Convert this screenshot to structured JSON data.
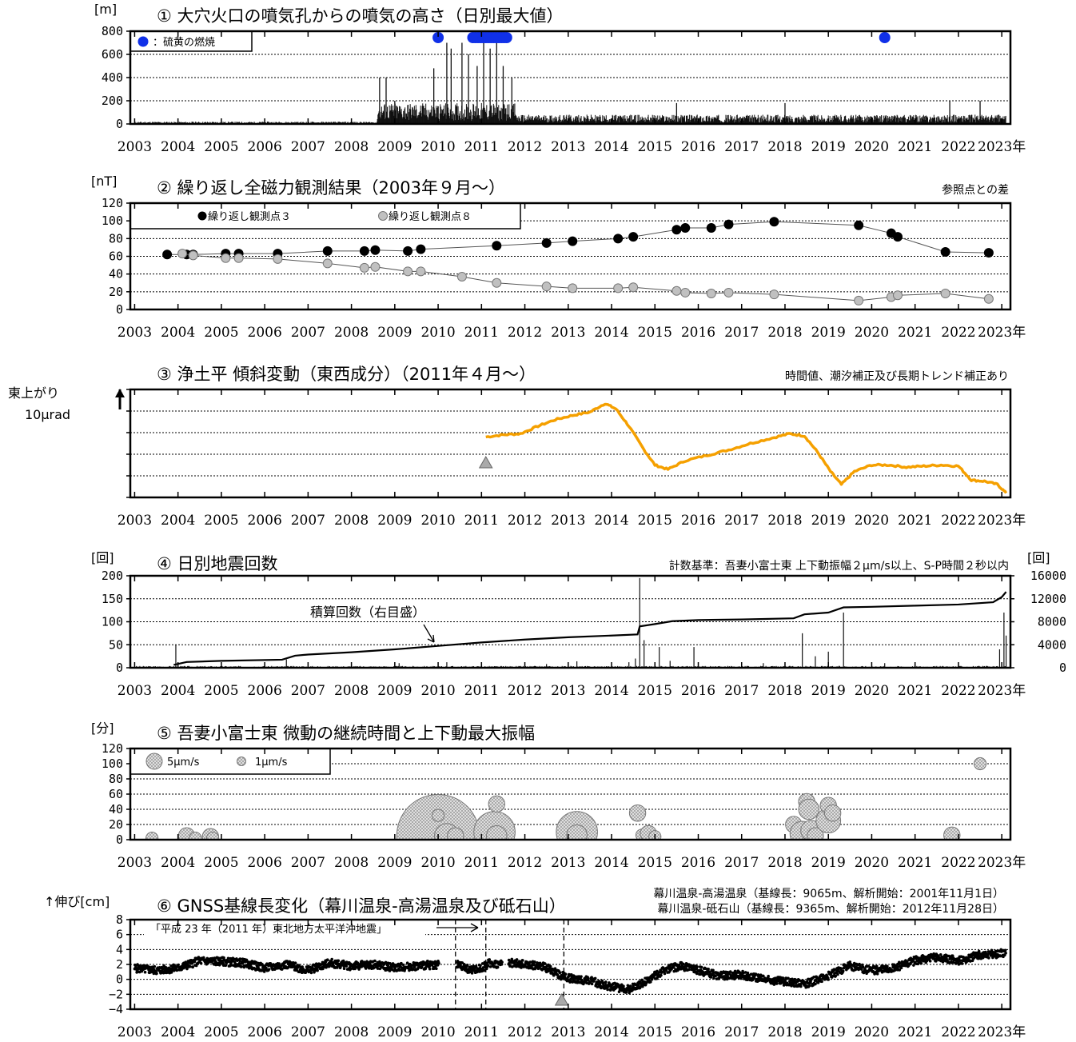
{
  "x_axis": {
    "years": [
      "2003",
      "2004",
      "2005",
      "2006",
      "2007",
      "2008",
      "2009",
      "2010",
      "2011",
      "2012",
      "2013",
      "2014",
      "2015",
      "2016",
      "2017",
      "2018",
      "2019",
      "2020",
      "2021",
      "2022",
      "2023"
    ],
    "year_suffix": "年",
    "range": [
      2002.9,
      2023.2
    ]
  },
  "chart_data": [
    {
      "id": "p1",
      "type": "bar",
      "title": "① 大穴火口の噴気孔からの噴気の高さ（日別最大値）",
      "unit_label": "[m]",
      "ylim": [
        0,
        800
      ],
      "yticks": [
        "800",
        "600",
        "400",
        "200",
        "0"
      ],
      "yticks_values": [
        800,
        600,
        400,
        200,
        0
      ],
      "legend": {
        "label": "：硫黄の燃焼",
        "color": "#1030e8"
      },
      "baseline_levels": [
        {
          "from": 2003.0,
          "to": 2008.6,
          "value": 20
        },
        {
          "from": 2008.6,
          "to": 2011.8,
          "value": 180
        },
        {
          "from": 2011.8,
          "to": 2023.1,
          "value": 80
        }
      ],
      "peaks": [
        {
          "x": 2008.65,
          "y": 400
        },
        {
          "x": 2008.8,
          "y": 400
        },
        {
          "x": 2009.0,
          "y": 200
        },
        {
          "x": 2009.9,
          "y": 480
        },
        {
          "x": 2010.2,
          "y": 700
        },
        {
          "x": 2010.3,
          "y": 650
        },
        {
          "x": 2010.55,
          "y": 700
        },
        {
          "x": 2010.7,
          "y": 600
        },
        {
          "x": 2010.9,
          "y": 500
        },
        {
          "x": 2011.05,
          "y": 700
        },
        {
          "x": 2011.2,
          "y": 650
        },
        {
          "x": 2011.35,
          "y": 700
        },
        {
          "x": 2011.5,
          "y": 500
        },
        {
          "x": 2011.7,
          "y": 400
        },
        {
          "x": 2015.5,
          "y": 180
        },
        {
          "x": 2018.0,
          "y": 180
        },
        {
          "x": 2021.8,
          "y": 200
        },
        {
          "x": 2022.5,
          "y": 200
        }
      ],
      "sulfur_burning": [
        {
          "from": 2010.0,
          "to": 2010.05
        },
        {
          "from": 2010.8,
          "to": 2011.6
        },
        {
          "from": 2020.3,
          "to": 2020.35
        }
      ]
    },
    {
      "id": "p2",
      "type": "scatter",
      "title": "② 繰り返し全磁力観測結果（2003年９月～）",
      "unit_label": "[nT]",
      "note": "参照点との差",
      "ylim": [
        0,
        120
      ],
      "yticks": [
        "120",
        "100",
        "80",
        "60",
        "40",
        "20",
        "0"
      ],
      "yticks_values": [
        120,
        100,
        80,
        60,
        40,
        20,
        0
      ],
      "series": [
        {
          "name": "繰り返し観測点３",
          "color": "#000000",
          "x": [
            2003.75,
            2004.2,
            2004.35,
            2005.1,
            2005.4,
            2006.3,
            2007.45,
            2008.3,
            2008.55,
            2009.3,
            2009.6,
            2011.35,
            2012.5,
            2013.1,
            2014.15,
            2014.5,
            2015.5,
            2015.7,
            2016.3,
            2016.7,
            2017.75,
            2019.7,
            2020.45,
            2020.6,
            2021.7,
            2022.7
          ],
          "y": [
            62,
            62,
            62,
            63,
            63,
            63,
            66,
            66,
            67,
            66,
            68,
            72,
            75,
            77,
            80,
            82,
            90,
            92,
            92,
            96,
            99,
            95,
            86,
            82,
            65,
            64
          ]
        },
        {
          "name": "繰り返し観測点８",
          "color": "#c0c0c0",
          "x": [
            2004.1,
            2004.35,
            2005.1,
            2005.4,
            2006.3,
            2007.45,
            2008.3,
            2008.55,
            2009.3,
            2009.6,
            2010.55,
            2011.35,
            2012.5,
            2013.1,
            2014.15,
            2014.5,
            2015.5,
            2015.7,
            2016.3,
            2016.7,
            2017.75,
            2019.7,
            2020.45,
            2020.6,
            2021.7,
            2022.7
          ],
          "y": [
            63,
            61,
            58,
            58,
            57,
            52,
            47,
            48,
            43,
            43,
            37,
            30,
            26,
            24,
            24,
            25,
            21,
            19,
            18,
            19,
            17,
            10,
            14,
            16,
            18,
            12
          ]
        }
      ]
    },
    {
      "id": "p3",
      "type": "line",
      "title": "③ 浄土平 傾斜変動（東西成分）（2011年４月～）",
      "ylabel_line1": "東上がり",
      "ylabel_line2": "10μrad",
      "note": "時間値、潮汐補正及び長期トレンド補正あり",
      "color": "#f5a000",
      "event_marker_x": 2011.1,
      "points": [
        [
          2011.1,
          2.8
        ],
        [
          2011.5,
          2.9
        ],
        [
          2011.9,
          2.95
        ],
        [
          2012.3,
          3.3
        ],
        [
          2012.7,
          3.6
        ],
        [
          2013.1,
          3.8
        ],
        [
          2013.5,
          3.95
        ],
        [
          2013.85,
          4.35
        ],
        [
          2014.1,
          4.1
        ],
        [
          2014.4,
          3.3
        ],
        [
          2014.75,
          2.2
        ],
        [
          2015.0,
          1.5
        ],
        [
          2015.3,
          1.3
        ],
        [
          2015.7,
          1.7
        ],
        [
          2016.2,
          1.95
        ],
        [
          2016.7,
          2.2
        ],
        [
          2017.2,
          2.5
        ],
        [
          2017.7,
          2.75
        ],
        [
          2018.1,
          2.95
        ],
        [
          2018.45,
          2.85
        ],
        [
          2018.75,
          2.1
        ],
        [
          2019.05,
          1.2
        ],
        [
          2019.3,
          0.6
        ],
        [
          2019.6,
          1.2
        ],
        [
          2020.0,
          1.5
        ],
        [
          2020.4,
          1.5
        ],
        [
          2020.8,
          1.4
        ],
        [
          2021.2,
          1.45
        ],
        [
          2021.6,
          1.5
        ],
        [
          2022.0,
          1.45
        ],
        [
          2022.3,
          0.8
        ],
        [
          2022.6,
          0.75
        ],
        [
          2022.9,
          0.6
        ],
        [
          2023.1,
          0.2
        ]
      ]
    },
    {
      "id": "p4",
      "type": "bar",
      "title": "④ 日別地震回数",
      "unit_label": "[回]",
      "unit_label_right": "[回]",
      "note": "計数基準：吾妻小富士東 上下動振幅２μm/s以上、S-P時間２秒以内",
      "annotation": "積算回数（右目盛）",
      "ylim": [
        0,
        200
      ],
      "y2lim": [
        0,
        16000
      ],
      "yticks": [
        "200",
        "150",
        "100",
        "50",
        "0"
      ],
      "yticks_values": [
        200,
        150,
        100,
        50,
        0
      ],
      "y2ticks": [
        "16000",
        "12000",
        "8000",
        "4000",
        "0"
      ],
      "y2ticks_values": [
        16000,
        12000,
        8000,
        4000,
        0
      ],
      "daily_peaks": [
        {
          "x": 2003.95,
          "y": 50
        },
        {
          "x": 2006.5,
          "y": 18
        },
        {
          "x": 2009.1,
          "y": 10
        },
        {
          "x": 2010.2,
          "y": 12
        },
        {
          "x": 2012.5,
          "y": 8
        },
        {
          "x": 2013.2,
          "y": 14
        },
        {
          "x": 2014.4,
          "y": 12
        },
        {
          "x": 2014.55,
          "y": 20
        },
        {
          "x": 2014.65,
          "y": 195
        },
        {
          "x": 2014.75,
          "y": 60
        },
        {
          "x": 2015.1,
          "y": 45
        },
        {
          "x": 2015.35,
          "y": 15
        },
        {
          "x": 2015.9,
          "y": 45
        },
        {
          "x": 2017.5,
          "y": 10
        },
        {
          "x": 2018.4,
          "y": 75
        },
        {
          "x": 2018.7,
          "y": 25
        },
        {
          "x": 2019.0,
          "y": 35
        },
        {
          "x": 2019.35,
          "y": 120
        },
        {
          "x": 2020.3,
          "y": 10
        },
        {
          "x": 2022.95,
          "y": 40
        },
        {
          "x": 2023.05,
          "y": 120
        },
        {
          "x": 2023.1,
          "y": 70
        }
      ],
      "cumulative": [
        [
          2003.9,
          500
        ],
        [
          2004.2,
          1000
        ],
        [
          2005.0,
          1200
        ],
        [
          2006.4,
          1400
        ],
        [
          2006.7,
          2100
        ],
        [
          2007.0,
          2300
        ],
        [
          2008.0,
          2700
        ],
        [
          2009.0,
          3200
        ],
        [
          2010.0,
          3800
        ],
        [
          2011.0,
          4400
        ],
        [
          2012.0,
          4900
        ],
        [
          2013.0,
          5300
        ],
        [
          2014.0,
          5600
        ],
        [
          2014.6,
          5800
        ],
        [
          2014.65,
          7200
        ],
        [
          2015.0,
          7600
        ],
        [
          2015.4,
          8100
        ],
        [
          2016.0,
          8300
        ],
        [
          2017.0,
          8400
        ],
        [
          2018.2,
          8600
        ],
        [
          2018.45,
          9300
        ],
        [
          2019.0,
          9600
        ],
        [
          2019.35,
          10500
        ],
        [
          2020.0,
          10600
        ],
        [
          2021.0,
          10800
        ],
        [
          2022.0,
          11000
        ],
        [
          2022.8,
          11400
        ],
        [
          2023.0,
          12300
        ],
        [
          2023.1,
          13200
        ]
      ]
    },
    {
      "id": "p5",
      "type": "scatter",
      "title": "⑤ 吾妻小富士東 微動の継続時間と上下動最大振幅",
      "unit_label": "[分]",
      "ylim": [
        0,
        120
      ],
      "yticks": [
        "120",
        "100",
        "80",
        "60",
        "40",
        "20",
        "0"
      ],
      "yticks_values": [
        120,
        100,
        80,
        60,
        40,
        20,
        0
      ],
      "legend": [
        {
          "label": "5μm/s",
          "amp": 5
        },
        {
          "label": "1μm/s",
          "amp": 1
        }
      ],
      "points": [
        {
          "x": 2003.4,
          "y": 2,
          "amp": 1
        },
        {
          "x": 2004.2,
          "y": 5,
          "amp": 2
        },
        {
          "x": 2004.4,
          "y": 2,
          "amp": 1
        },
        {
          "x": 2004.75,
          "y": 4,
          "amp": 2
        },
        {
          "x": 2004.8,
          "y": 2,
          "amp": 1
        },
        {
          "x": 2010.0,
          "y": 5,
          "amp": 18
        },
        {
          "x": 2010.0,
          "y": 32,
          "amp": 1
        },
        {
          "x": 2010.2,
          "y": 5,
          "amp": 4
        },
        {
          "x": 2010.4,
          "y": 5,
          "amp": 2
        },
        {
          "x": 2011.3,
          "y": 10,
          "amp": 8
        },
        {
          "x": 2011.35,
          "y": 5,
          "amp": 3
        },
        {
          "x": 2011.35,
          "y": 47,
          "amp": 2
        },
        {
          "x": 2013.2,
          "y": 10,
          "amp": 8
        },
        {
          "x": 2013.2,
          "y": 6,
          "amp": 3
        },
        {
          "x": 2014.6,
          "y": 35,
          "amp": 2
        },
        {
          "x": 2014.7,
          "y": 6,
          "amp": 1
        },
        {
          "x": 2014.85,
          "y": 8,
          "amp": 2
        },
        {
          "x": 2015.0,
          "y": 4,
          "amp": 1
        },
        {
          "x": 2018.2,
          "y": 20,
          "amp": 2
        },
        {
          "x": 2018.4,
          "y": 8,
          "amp": 4
        },
        {
          "x": 2018.5,
          "y": 50,
          "amp": 2
        },
        {
          "x": 2018.55,
          "y": 40,
          "amp": 3
        },
        {
          "x": 2018.6,
          "y": 12,
          "amp": 3
        },
        {
          "x": 2018.7,
          "y": 5,
          "amp": 2
        },
        {
          "x": 2019.0,
          "y": 25,
          "amp": 4
        },
        {
          "x": 2019.0,
          "y": 45,
          "amp": 2
        },
        {
          "x": 2019.1,
          "y": 35,
          "amp": 2
        },
        {
          "x": 2021.85,
          "y": 6,
          "amp": 2
        },
        {
          "x": 2022.5,
          "y": 100,
          "amp": 1
        }
      ]
    },
    {
      "id": "p6",
      "type": "scatter",
      "title": "⑥ GNSS基線長変化（幕川温泉-高湯温泉及び砥石山）",
      "unit_label": "↑伸び[cm]",
      "note_line1": "幕川温泉-高湯温泉（基線長：9065m、解析開始：2001年11月1日）",
      "note_line2": "幕川温泉-砥石山（基線長：9365m、解析開始：2012年11月28日）",
      "annotation": "「平成 23 年（2011 年）東北地方太平洋沖地震」",
      "ylim": [
        -4,
        8
      ],
      "yticks": [
        "8",
        "6",
        "4",
        "2",
        "0",
        "−2",
        "−4"
      ],
      "yticks_values": [
        8,
        6,
        4,
        2,
        0,
        -2,
        -4
      ],
      "dashed_x": [
        2010.4,
        2011.1,
        2012.9
      ],
      "event_marker_x": 2012.85,
      "trend": [
        [
          2003.0,
          1.5
        ],
        [
          2003.5,
          1.2
        ],
        [
          2004.0,
          1.5
        ],
        [
          2004.5,
          2.5
        ],
        [
          2005.0,
          2.4
        ],
        [
          2005.5,
          2.2
        ],
        [
          2006.0,
          1.5
        ],
        [
          2006.5,
          2.0
        ],
        [
          2007.0,
          1.2
        ],
        [
          2007.5,
          2.2
        ],
        [
          2008.0,
          1.8
        ],
        [
          2008.5,
          2.0
        ],
        [
          2009.0,
          1.6
        ],
        [
          2009.5,
          1.8
        ],
        [
          2010.0,
          2.0
        ],
        [
          2010.4,
          2.0
        ],
        [
          2010.5,
          1.8
        ],
        [
          2010.8,
          1.2
        ],
        [
          2011.0,
          1.5
        ],
        [
          2011.2,
          2.2
        ],
        [
          2011.4,
          2.0
        ],
        [
          2011.6,
          2.3
        ],
        [
          2012.0,
          2.0
        ],
        [
          2012.4,
          1.8
        ],
        [
          2012.85,
          0.5
        ],
        [
          2013.0,
          0.2
        ],
        [
          2013.5,
          -0.2
        ],
        [
          2014.0,
          -1.0
        ],
        [
          2014.4,
          -1.3
        ],
        [
          2014.8,
          -0.3
        ],
        [
          2015.2,
          1.2
        ],
        [
          2015.6,
          1.8
        ],
        [
          2016.0,
          1.2
        ],
        [
          2016.5,
          0.5
        ],
        [
          2017.0,
          0.6
        ],
        [
          2017.5,
          0.0
        ],
        [
          2018.0,
          -0.3
        ],
        [
          2018.5,
          -0.6
        ],
        [
          2019.0,
          0.5
        ],
        [
          2019.5,
          1.8
        ],
        [
          2020.0,
          1.2
        ],
        [
          2020.5,
          1.5
        ],
        [
          2021.0,
          2.5
        ],
        [
          2021.5,
          3.0
        ],
        [
          2022.0,
          2.5
        ],
        [
          2022.5,
          3.3
        ],
        [
          2023.1,
          3.5
        ]
      ]
    }
  ]
}
